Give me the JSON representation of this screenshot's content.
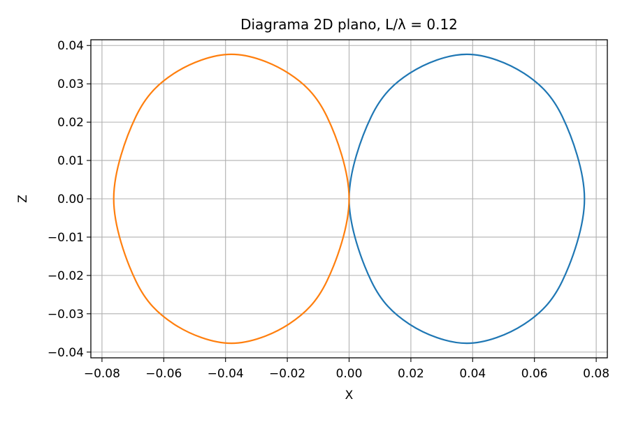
{
  "chart_data": {
    "type": "line",
    "title": "Diagrama 2D plano, L/λ = 0.12",
    "xlabel": "X",
    "ylabel": "Z",
    "xlim": [
      -0.0836,
      0.0836
    ],
    "ylim": [
      -0.0415,
      0.0415
    ],
    "grid": true,
    "legend": "none",
    "xticks": [
      -0.08,
      -0.06,
      -0.04,
      -0.02,
      0.0,
      0.02,
      0.04,
      0.06,
      0.08
    ],
    "xtick_labels": [
      "−0.08",
      "−0.06",
      "−0.04",
      "−0.02",
      "0.00",
      "0.02",
      "0.04",
      "0.06",
      "0.08"
    ],
    "yticks": [
      0.04,
      0.03,
      0.02,
      0.01,
      0.0,
      -0.01,
      -0.02,
      -0.03,
      -0.04
    ],
    "ytick_labels": [
      "0.04",
      "0.03",
      "0.02",
      "0.01",
      "0.00",
      "−0.01",
      "−0.02",
      "−0.03",
      "−0.04"
    ],
    "series": [
      {
        "color": "#1f77b4",
        "x": [
          0.0,
          0.0072,
          0.0195,
          0.0381,
          0.0567,
          0.069,
          0.0762,
          0.069,
          0.0567,
          0.0381,
          0.0195,
          0.0072,
          0.0
        ],
        "y": [
          0.0,
          0.0215,
          0.0327,
          0.0377,
          0.0327,
          0.0215,
          0.0,
          -0.0215,
          -0.0327,
          -0.0377,
          -0.0327,
          -0.0215,
          0.0
        ]
      },
      {
        "color": "#ff7f0e",
        "x": [
          0.0,
          -0.0072,
          -0.0195,
          -0.0381,
          -0.0567,
          -0.069,
          -0.0762,
          -0.069,
          -0.0567,
          -0.0381,
          -0.0195,
          -0.0072,
          0.0
        ],
        "y": [
          0.0,
          0.0215,
          0.0327,
          0.0377,
          0.0327,
          0.0215,
          0.0,
          -0.0215,
          -0.0327,
          -0.0377,
          -0.0327,
          -0.0215,
          0.0
        ]
      }
    ]
  }
}
